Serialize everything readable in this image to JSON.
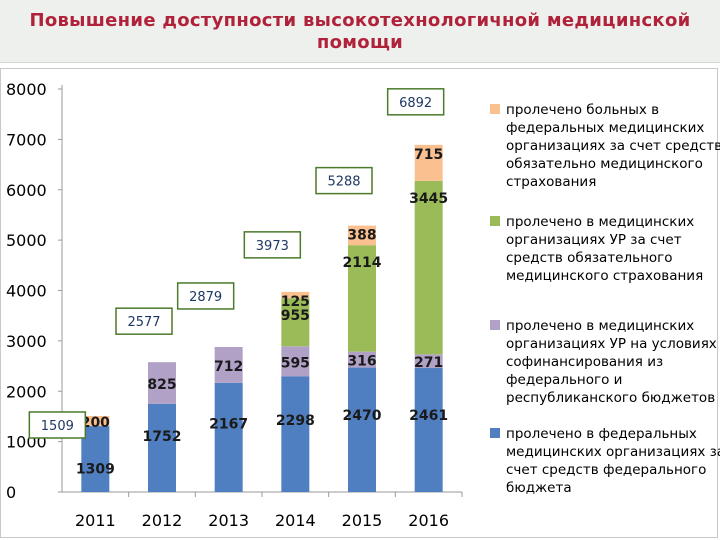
{
  "header": {
    "title": "Повышение доступности высокотехнологичной медицинской помощи"
  },
  "colors": {
    "federal_budget": "#4f7fc0",
    "cofinancing": "#b2a1c7",
    "omc_republic": "#9bbb59",
    "omc_federal": "#fac090",
    "total_box_border": "#4a7a2a"
  },
  "chart_data": {
    "type": "bar",
    "stacked": true,
    "categories": [
      "2011",
      "2012",
      "2013",
      "2014",
      "2015",
      "2016"
    ],
    "ylim": [
      0,
      8000
    ],
    "yticks": [
      "0",
      "1000",
      "2000",
      "3000",
      "4000",
      "5000",
      "6000",
      "7000",
      "8000"
    ],
    "grid": false,
    "legend_position": "right",
    "series": [
      {
        "name": "пролечено в федеральных медицинских организациях за счет средств федерального бюджета",
        "color": "#4f7fc0",
        "values": [
          1309,
          1752,
          2167,
          2298,
          2470,
          2461
        ],
        "labels": [
          "1309",
          "1752",
          "2167",
          "2298",
          "2470",
          "2461"
        ]
      },
      {
        "name": "пролечено в медицинских организациях УР на условиях софинансирования из федерального и республиканского бюджетов",
        "color": "#b2a1c7",
        "values": [
          0,
          825,
          712,
          595,
          316,
          271
        ],
        "labels": [
          "",
          "825",
          "712",
          "595",
          "316",
          "271"
        ]
      },
      {
        "name": "пролечено в медицинских организациях УР за счет средств обязательного медицинского страхования",
        "color": "#9bbb59",
        "values": [
          0,
          0,
          0,
          955,
          2114,
          3445
        ],
        "labels": [
          "",
          "",
          "",
          "955",
          "2114",
          "3445"
        ]
      },
      {
        "name": "пролечено больных в федеральных медицинских организациях за счет средства обязательно медицинского страхования",
        "color": "#fac090",
        "values": [
          200,
          0,
          0,
          125,
          388,
          715
        ],
        "labels": [
          "200",
          "",
          "",
          "125",
          "388",
          "715"
        ]
      }
    ],
    "totals": [
      "1509",
      "2577",
      "2879",
      "3973",
      "5288",
      "6892"
    ],
    "legend_lines": [
      [
        "пролечено больных в",
        "федеральных медицинских",
        "организациях за счет средства",
        "обязательно медицинского",
        "страхования"
      ],
      [
        "пролечено в медицинских",
        "организациях  УР за счет",
        "средств обязательного",
        "медицинского страхования"
      ],
      [
        "пролечено в  медицинских",
        "организациях УР на условиях",
        "софинансирования  из",
        "федерального и",
        "республиканского бюджетов"
      ],
      [
        "пролечено в федеральных",
        "медицинских организациях за",
        "счет средств федерального",
        "бюджета"
      ]
    ]
  }
}
